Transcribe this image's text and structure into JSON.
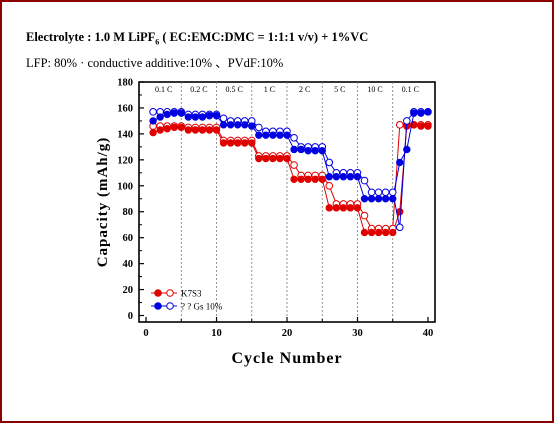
{
  "header": {
    "line1_pre": "Electrolyte : 1.0 M LiPF",
    "line1_sub": "6",
    "line1_post": " ( EC:EMC:DMC = 1:1:1 v/v) + 1%VC",
    "line2": "LFP: 80% · conductive additive:10% 、PVdF:10%"
  },
  "chart_data": {
    "type": "line",
    "xlabel": "Cycle Number",
    "ylabel": "Capacity (mAh/g)",
    "xlim": [
      -1,
      41
    ],
    "ylim": [
      -5,
      180
    ],
    "xticks": [
      0,
      10,
      20,
      30,
      40
    ],
    "yticks": [
      0,
      20,
      40,
      60,
      80,
      100,
      120,
      140,
      160,
      180
    ],
    "legend_position": "bottom-left",
    "rate_dividers": [
      5,
      10,
      15,
      20,
      25,
      30,
      35
    ],
    "rate_labels": [
      {
        "label": "0.1 C",
        "x": 2.5
      },
      {
        "label": "0.2 C",
        "x": 7.5
      },
      {
        "label": "0.5 C",
        "x": 12.5
      },
      {
        "label": "1 C",
        "x": 17.5
      },
      {
        "label": "2 C",
        "x": 22.5
      },
      {
        "label": "5 C",
        "x": 27.5
      },
      {
        "label": "10 C",
        "x": 32.5
      },
      {
        "label": "0.1 C",
        "x": 37.5
      }
    ],
    "series": [
      {
        "name": "K7S3",
        "color": "#e00000",
        "x": [
          1,
          2,
          3,
          4,
          5,
          6,
          7,
          8,
          9,
          10,
          11,
          12,
          13,
          14,
          15,
          16,
          17,
          18,
          19,
          20,
          21,
          22,
          23,
          24,
          25,
          26,
          27,
          28,
          29,
          30,
          31,
          32,
          33,
          34,
          35,
          36,
          37,
          38,
          39,
          40
        ],
        "charge": [
          141,
          143,
          144,
          145,
          145,
          143,
          143,
          143,
          143,
          143,
          133,
          133,
          133,
          133,
          133,
          121,
          121,
          121,
          121,
          121,
          105,
          105,
          105,
          105,
          105,
          83,
          83,
          83,
          83,
          83,
          64,
          64,
          64,
          64,
          64,
          80,
          146,
          147,
          146,
          146
        ],
        "discharge": [
          146,
          146,
          146,
          146,
          146,
          145,
          145,
          145,
          145,
          145,
          135,
          135,
          135,
          135,
          135,
          123,
          123,
          123,
          123,
          123,
          116,
          108,
          108,
          108,
          108,
          100,
          86,
          86,
          86,
          86,
          77,
          67,
          67,
          67,
          67,
          147,
          147,
          147,
          147,
          147
        ]
      },
      {
        "name": "? ? Gs 10%",
        "color": "#0000e0",
        "x": [
          1,
          2,
          3,
          4,
          5,
          6,
          7,
          8,
          9,
          10,
          11,
          12,
          13,
          14,
          15,
          16,
          17,
          18,
          19,
          20,
          21,
          22,
          23,
          24,
          25,
          26,
          27,
          28,
          29,
          30,
          31,
          32,
          33,
          34,
          35,
          36,
          37,
          38,
          39,
          40
        ],
        "charge": [
          150,
          153,
          155,
          156,
          156,
          153,
          153,
          153,
          154,
          154,
          147,
          147,
          147,
          147,
          146,
          139,
          139,
          139,
          139,
          139,
          128,
          128,
          127,
          127,
          127,
          107,
          107,
          107,
          107,
          107,
          90,
          90,
          90,
          90,
          90,
          118,
          128,
          156,
          156,
          157
        ],
        "discharge": [
          157,
          157,
          157,
          157,
          157,
          155,
          155,
          155,
          155,
          155,
          152,
          150,
          150,
          150,
          150,
          145,
          142,
          142,
          142,
          142,
          137,
          130,
          130,
          130,
          130,
          118,
          110,
          110,
          110,
          110,
          104,
          95,
          95,
          95,
          95,
          68,
          150,
          157,
          157,
          157
        ]
      }
    ]
  }
}
